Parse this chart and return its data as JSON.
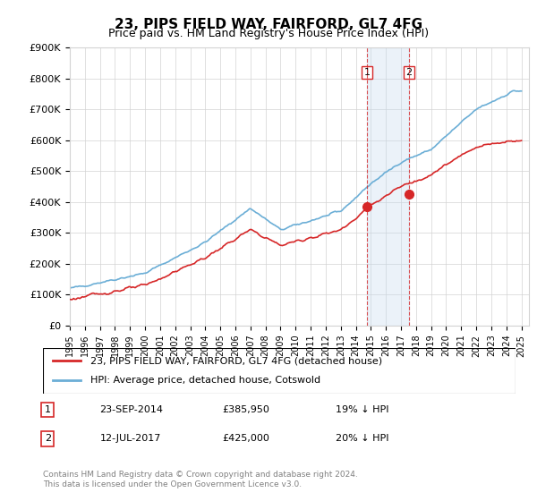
{
  "title": "23, PIPS FIELD WAY, FAIRFORD, GL7 4FG",
  "subtitle": "Price paid vs. HM Land Registry's House Price Index (HPI)",
  "hpi_label": "HPI: Average price, detached house, Cotswold",
  "price_label": "23, PIPS FIELD WAY, FAIRFORD, GL7 4FG (detached house)",
  "footer": "Contains HM Land Registry data © Crown copyright and database right 2024.\nThis data is licensed under the Open Government Licence v3.0.",
  "transaction1": {
    "label": "1",
    "date": "23-SEP-2014",
    "price": "£385,950",
    "note": "19% ↓ HPI"
  },
  "transaction2": {
    "label": "2",
    "date": "12-JUL-2017",
    "price": "£425,000",
    "note": "20% ↓ HPI"
  },
  "vline1_year": 2014.73,
  "vline2_year": 2017.53,
  "marker1_year": 2014.73,
  "marker1_value": 385950,
  "marker2_year": 2017.53,
  "marker2_value": 425000,
  "hpi_color": "#6baed6",
  "price_color": "#d62728",
  "shade_color": "#c6dbef",
  "ylim": [
    0,
    900000
  ],
  "xlim_start": 1995.0,
  "xlim_end": 2025.5
}
